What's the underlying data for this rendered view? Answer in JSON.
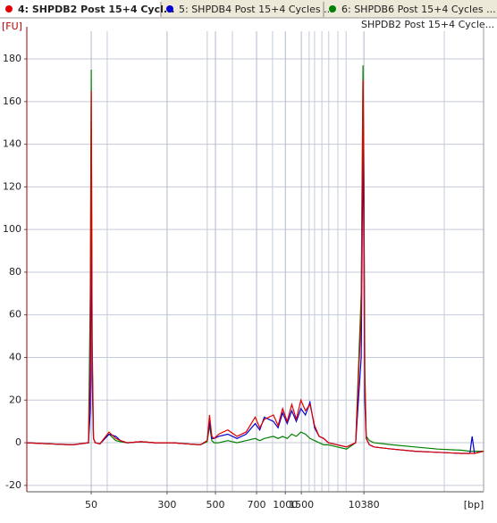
{
  "chart_data": {
    "type": "line",
    "subtitle": "SHPDB2 Post 15+4 Cycle...",
    "y_label": "[FU]",
    "x_label": "[bp]",
    "xlim": [
      0,
      100
    ],
    "ylim": [
      -23,
      193
    ],
    "yticks": [
      -20,
      0,
      20,
      40,
      60,
      80,
      100,
      120,
      140,
      160,
      180
    ],
    "xticks": [
      {
        "value": 14.1,
        "label": "50"
      },
      {
        "value": 30.7,
        "label": "300"
      },
      {
        "value": 41.3,
        "label": "500"
      },
      {
        "value": 50.3,
        "label": "700"
      },
      {
        "value": 56.6,
        "label": "1000"
      },
      {
        "value": 60.1,
        "label": "1500"
      },
      {
        "value": 73.8,
        "label": "10380"
      }
    ],
    "xminor": [
      17.6,
      39.5,
      45.0,
      53.8,
      61.8,
      63.0,
      64.6,
      66.1,
      68.1,
      69.9,
      91.4
    ],
    "grid": true,
    "x": [
      0,
      5,
      10,
      13.5,
      13.9,
      14.1,
      14.3,
      14.6,
      15,
      16,
      18,
      19.5,
      20.5,
      22,
      25,
      28,
      32,
      35,
      38,
      39.5,
      40,
      40.5,
      41,
      42,
      44,
      46,
      48,
      50,
      51,
      52,
      54,
      55,
      56,
      57,
      58,
      59,
      60,
      61,
      62,
      63,
      64,
      65,
      66,
      68,
      70,
      72,
      73.2,
      73.6,
      73.8,
      74,
      74.3,
      75,
      76,
      80,
      85,
      90,
      95,
      97,
      97.5,
      98,
      100
    ],
    "series": [
      {
        "name": "4: SHPDB2 Post 15+4 Cycl...",
        "color": "#e00000",
        "values": [
          0,
          -0.5,
          -1,
          0,
          40,
          165,
          50,
          2,
          0,
          -0.5,
          5,
          2,
          1,
          0,
          0.5,
          0,
          0,
          -0.5,
          -1,
          1,
          13,
          3,
          2,
          4,
          6,
          3,
          5,
          12,
          7,
          11,
          13,
          8,
          16,
          10,
          18,
          11,
          20,
          15,
          18,
          8,
          3,
          2,
          0,
          -1,
          -2,
          0,
          60,
          170,
          120,
          30,
          2,
          -1,
          -2,
          -3,
          -4,
          -4.5,
          -5,
          -5,
          -5,
          -5,
          -4
        ]
      },
      {
        "name": "5: SHPDB4 Post 15+4 Cycles ...",
        "color": "#0000d0",
        "values": [
          0,
          -0.5,
          -1,
          0,
          15,
          112,
          30,
          2,
          0,
          -0.5,
          4,
          3,
          1,
          0,
          0.5,
          0,
          0,
          -0.5,
          -1,
          1,
          10,
          2,
          2,
          3,
          4,
          2,
          4,
          9,
          6,
          12,
          10,
          7,
          14,
          9,
          15,
          10,
          16,
          13,
          19,
          7,
          3,
          2,
          0,
          -1,
          -2,
          0,
          40,
          145,
          90,
          20,
          2,
          -1,
          -2,
          -3,
          -4,
          -4.5,
          -5,
          -5,
          3,
          -5,
          -4
        ]
      },
      {
        "name": "6: SHPDB6 Post 15+4 Cycles ...",
        "color": "#008000",
        "values": [
          0,
          -0.5,
          -1,
          0,
          70,
          175,
          40,
          2,
          0,
          -0.5,
          4,
          1,
          0.5,
          0,
          0.5,
          0,
          0,
          -0.5,
          -1,
          0.5,
          8,
          1,
          0,
          0,
          1,
          0,
          1,
          2,
          1,
          2,
          3,
          2,
          3,
          2,
          4,
          3,
          5,
          4,
          2,
          1,
          0,
          -1,
          -1,
          -2,
          -3,
          0,
          70,
          177,
          130,
          35,
          3,
          1,
          0,
          -1,
          -2,
          -3,
          -3.5,
          -4,
          -4,
          -4,
          -4
        ]
      }
    ]
  }
}
